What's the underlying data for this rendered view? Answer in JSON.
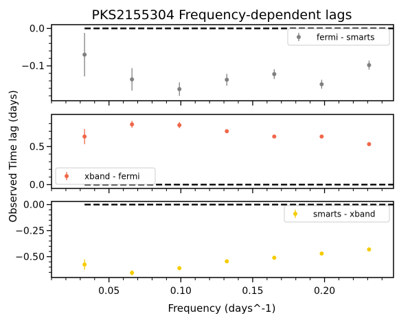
{
  "figure": {
    "title": "PKS2155304    Frequency-dependent lags",
    "xlabel": "Frequency (days^-1)",
    "ylabel": "Observed Time lag (days)"
  },
  "chart_data": [
    {
      "type": "scatter",
      "legend": "fermi - smarts",
      "legend_position": "upper right",
      "color": "#808080",
      "x": [
        0.033,
        0.066,
        0.099,
        0.132,
        0.165,
        0.198,
        0.231
      ],
      "y": [
        -0.07,
        -0.136,
        -0.162,
        -0.137,
        -0.122,
        -0.149,
        -0.098
      ],
      "yerr": [
        0.058,
        0.03,
        0.018,
        0.016,
        0.013,
        0.012,
        0.012
      ],
      "xlim": [
        0.01,
        0.248
      ],
      "ylim": [
        -0.193,
        0.01
      ],
      "yticks": [
        0.0,
        -0.1
      ],
      "ytick_labels": [
        "0.0",
        "−0.1"
      ],
      "minor_yticks": [
        -0.02,
        -0.04,
        -0.06,
        -0.08,
        -0.12,
        -0.14,
        -0.16,
        -0.18
      ],
      "reference_line": {
        "y": 0,
        "x_from": 0.033,
        "x_to": 0.248,
        "style": "dashed"
      }
    },
    {
      "type": "scatter",
      "legend": "xband - fermi",
      "legend_position": "lower left",
      "color": "#f0674a",
      "x": [
        0.033,
        0.066,
        0.099,
        0.132,
        0.165,
        0.198,
        0.231
      ],
      "y": [
        0.63,
        0.79,
        0.78,
        0.7,
        0.63,
        0.63,
        0.53
      ],
      "yerr": [
        0.1,
        0.045,
        0.04,
        0.025,
        0.02,
        0.02,
        0.02
      ],
      "xlim": [
        0.01,
        0.248
      ],
      "ylim": [
        -0.05,
        0.92
      ],
      "yticks": [
        0.0,
        0.5
      ],
      "ytick_labels": [
        "0.0",
        "0.5"
      ],
      "minor_yticks": [
        0.1,
        0.2,
        0.3,
        0.4,
        0.6,
        0.7,
        0.8
      ],
      "reference_line": {
        "y": 0,
        "x_from": 0.033,
        "x_to": 0.248,
        "style": "dashed"
      }
    },
    {
      "type": "scatter",
      "legend": "smarts - xband",
      "legend_position": "upper right",
      "color": "#f5cc00",
      "x": [
        0.033,
        0.066,
        0.099,
        0.132,
        0.165,
        0.198,
        0.231
      ],
      "y": [
        -0.575,
        -0.655,
        -0.61,
        -0.545,
        -0.51,
        -0.47,
        -0.43
      ],
      "yerr": [
        0.05,
        0.025,
        0.02,
        0.015,
        0.015,
        0.015,
        0.015
      ],
      "xlim": [
        0.01,
        0.248
      ],
      "ylim": [
        -0.7,
        0.03
      ],
      "yticks": [
        0.0,
        -0.25,
        -0.5
      ],
      "ytick_labels": [
        "0.00",
        "−0.25",
        "−0.50"
      ],
      "minor_yticks": [
        -0.05,
        -0.1,
        -0.15,
        -0.2,
        -0.3,
        -0.35,
        -0.4,
        -0.45,
        -0.55,
        -0.6,
        -0.65
      ],
      "xticks": [
        0.05,
        0.1,
        0.15,
        0.2
      ],
      "xtick_labels": [
        "0.05",
        "0.10",
        "0.15",
        "0.20"
      ],
      "minor_xticks": [
        0.01,
        0.02,
        0.03,
        0.04,
        0.06,
        0.07,
        0.08,
        0.09,
        0.11,
        0.12,
        0.13,
        0.14,
        0.16,
        0.17,
        0.18,
        0.19,
        0.21,
        0.22,
        0.23,
        0.24
      ],
      "reference_line": {
        "y": 0,
        "x_from": 0.033,
        "x_to": 0.248,
        "style": "dashed"
      }
    }
  ]
}
